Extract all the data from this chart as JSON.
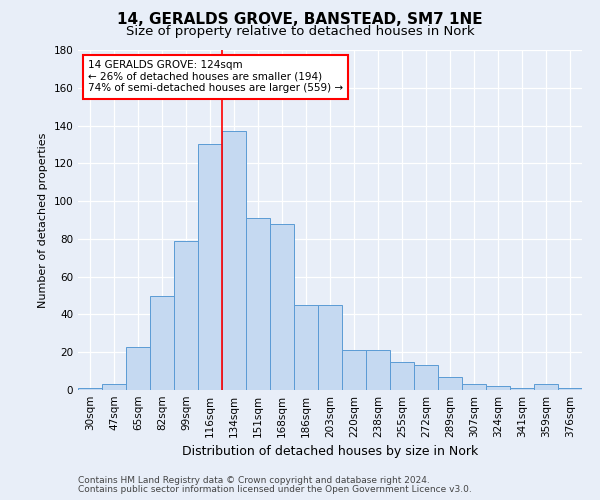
{
  "title1": "14, GERALDS GROVE, BANSTEAD, SM7 1NE",
  "title2": "Size of property relative to detached houses in Nork",
  "xlabel": "Distribution of detached houses by size in Nork",
  "ylabel": "Number of detached properties",
  "categories": [
    "30sqm",
    "47sqm",
    "65sqm",
    "82sqm",
    "99sqm",
    "116sqm",
    "134sqm",
    "151sqm",
    "168sqm",
    "186sqm",
    "203sqm",
    "220sqm",
    "238sqm",
    "255sqm",
    "272sqm",
    "289sqm",
    "307sqm",
    "324sqm",
    "341sqm",
    "359sqm",
    "376sqm"
  ],
  "values": [
    1,
    3,
    23,
    50,
    79,
    130,
    137,
    91,
    88,
    45,
    45,
    21,
    21,
    15,
    13,
    7,
    3,
    2,
    1,
    3,
    1
  ],
  "bar_color": "#c5d9f1",
  "bar_edge_color": "#5b9bd5",
  "property_line_x": 5.5,
  "annotation_text": "14 GERALDS GROVE: 124sqm\n← 26% of detached houses are smaller (194)\n74% of semi-detached houses are larger (559) →",
  "annotation_box_color": "white",
  "annotation_box_edge": "red",
  "vline_color": "red",
  "ylim": [
    0,
    180
  ],
  "yticks": [
    0,
    20,
    40,
    60,
    80,
    100,
    120,
    140,
    160,
    180
  ],
  "footer1": "Contains HM Land Registry data © Crown copyright and database right 2024.",
  "footer2": "Contains public sector information licensed under the Open Government Licence v3.0.",
  "background_color": "#e8eef8",
  "plot_background": "#e8eef8",
  "title1_fontsize": 11,
  "title2_fontsize": 9.5,
  "xlabel_fontsize": 9,
  "ylabel_fontsize": 8,
  "tick_fontsize": 7.5,
  "annotation_fontsize": 7.5,
  "footer_fontsize": 6.5
}
